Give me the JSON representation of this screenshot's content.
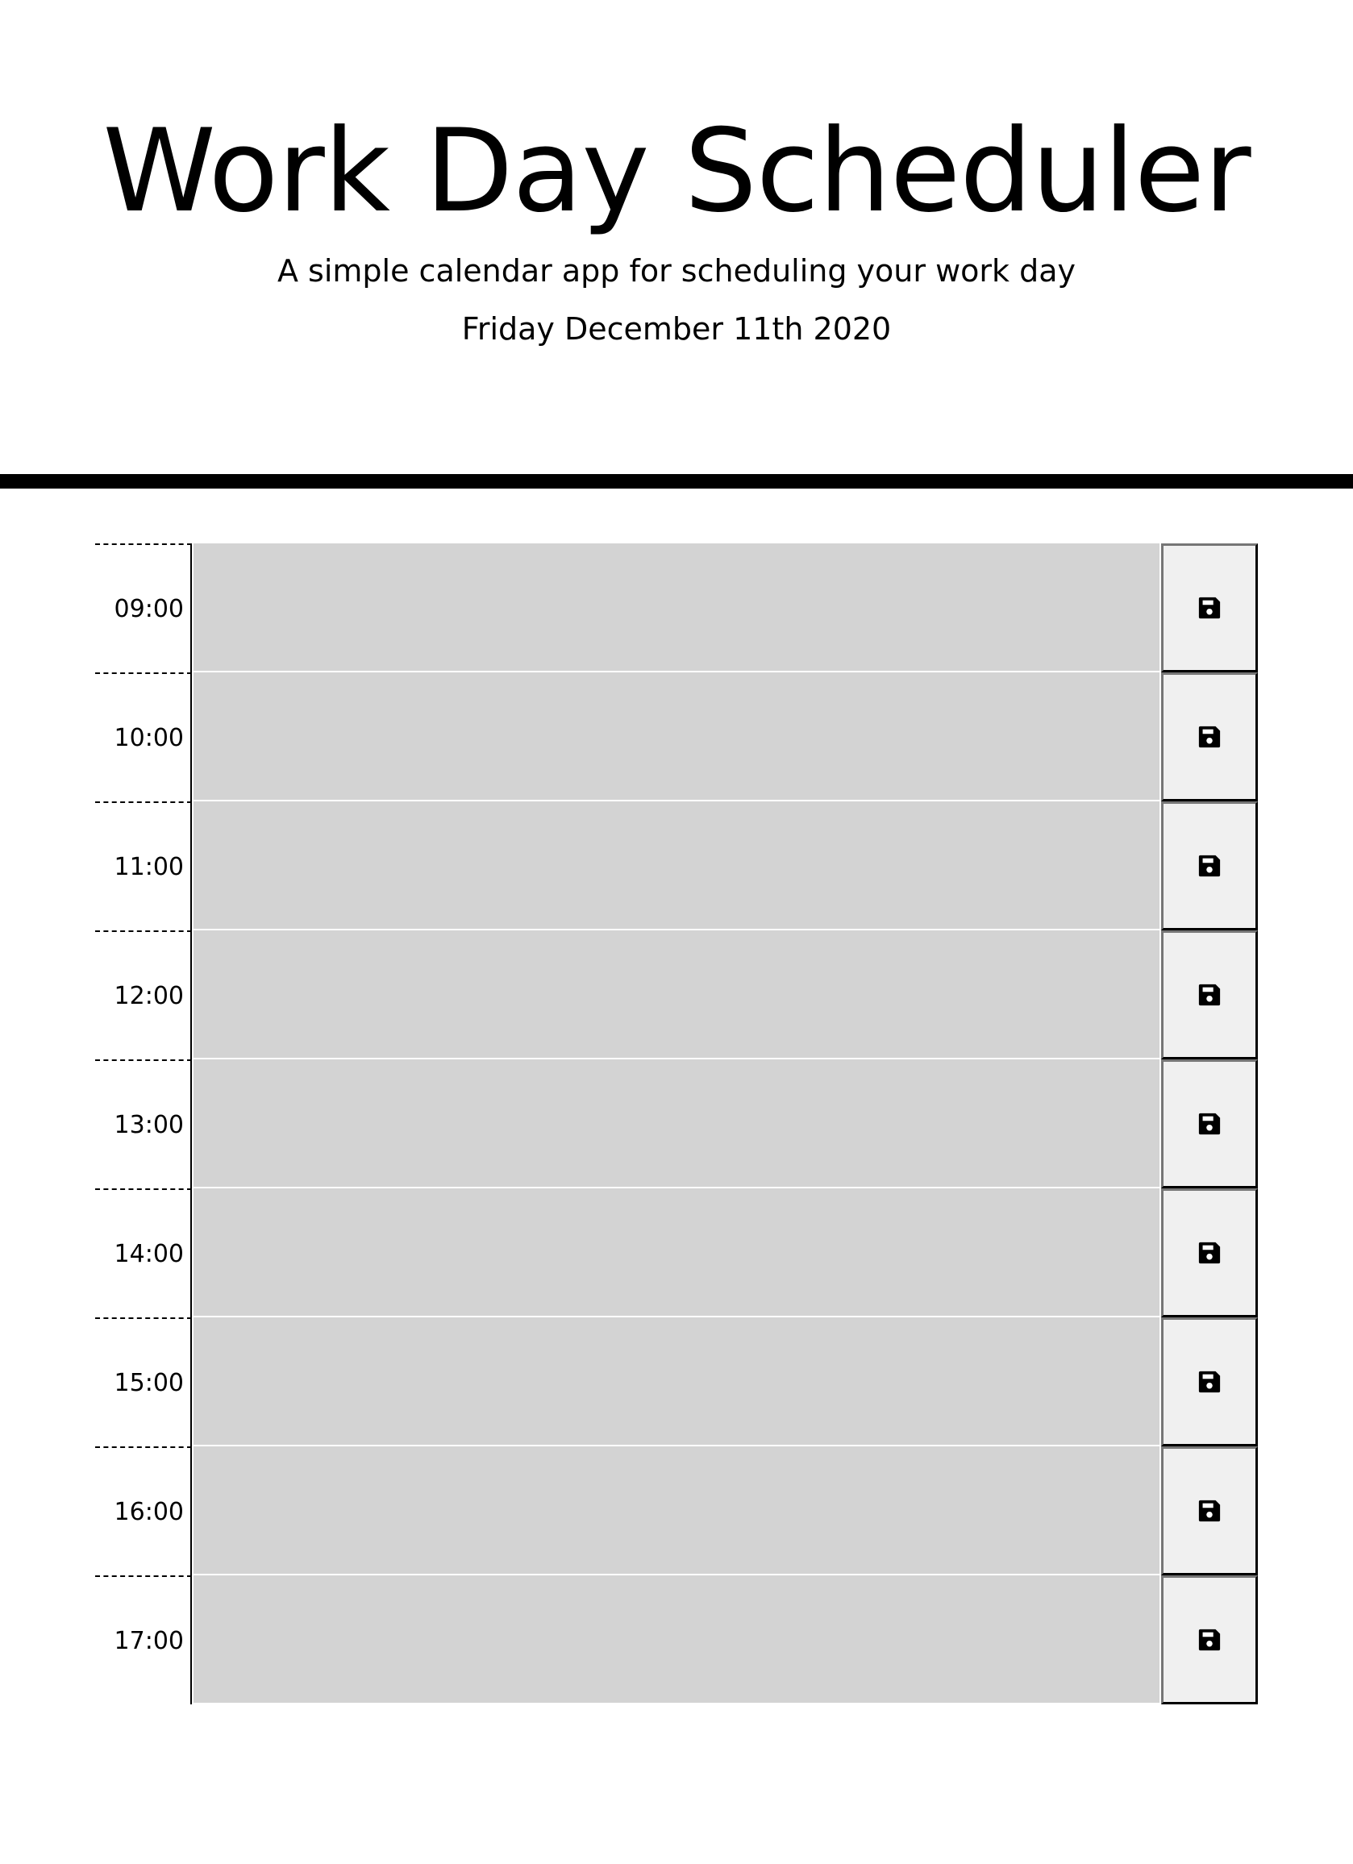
{
  "header": {
    "title": "Work Day Scheduler",
    "subtitle": "A simple calendar app for scheduling your work day",
    "current_date": "Friday December 11th 2020"
  },
  "time_blocks": [
    {
      "hour": "09:00",
      "description": "",
      "save_icon": "floppy-disk-icon"
    },
    {
      "hour": "10:00",
      "description": "",
      "save_icon": "floppy-disk-icon"
    },
    {
      "hour": "11:00",
      "description": "",
      "save_icon": "floppy-disk-icon"
    },
    {
      "hour": "12:00",
      "description": "",
      "save_icon": "floppy-disk-icon"
    },
    {
      "hour": "13:00",
      "description": "",
      "save_icon": "floppy-disk-icon"
    },
    {
      "hour": "14:00",
      "description": "",
      "save_icon": "floppy-disk-icon"
    },
    {
      "hour": "15:00",
      "description": "",
      "save_icon": "floppy-disk-icon"
    },
    {
      "hour": "16:00",
      "description": "",
      "save_icon": "floppy-disk-icon"
    },
    {
      "hour": "17:00",
      "description": "",
      "save_icon": "floppy-disk-icon"
    }
  ],
  "colors": {
    "past_block": "#d3d3d3",
    "save_button": "#f0f0f0",
    "divider": "#000000"
  }
}
